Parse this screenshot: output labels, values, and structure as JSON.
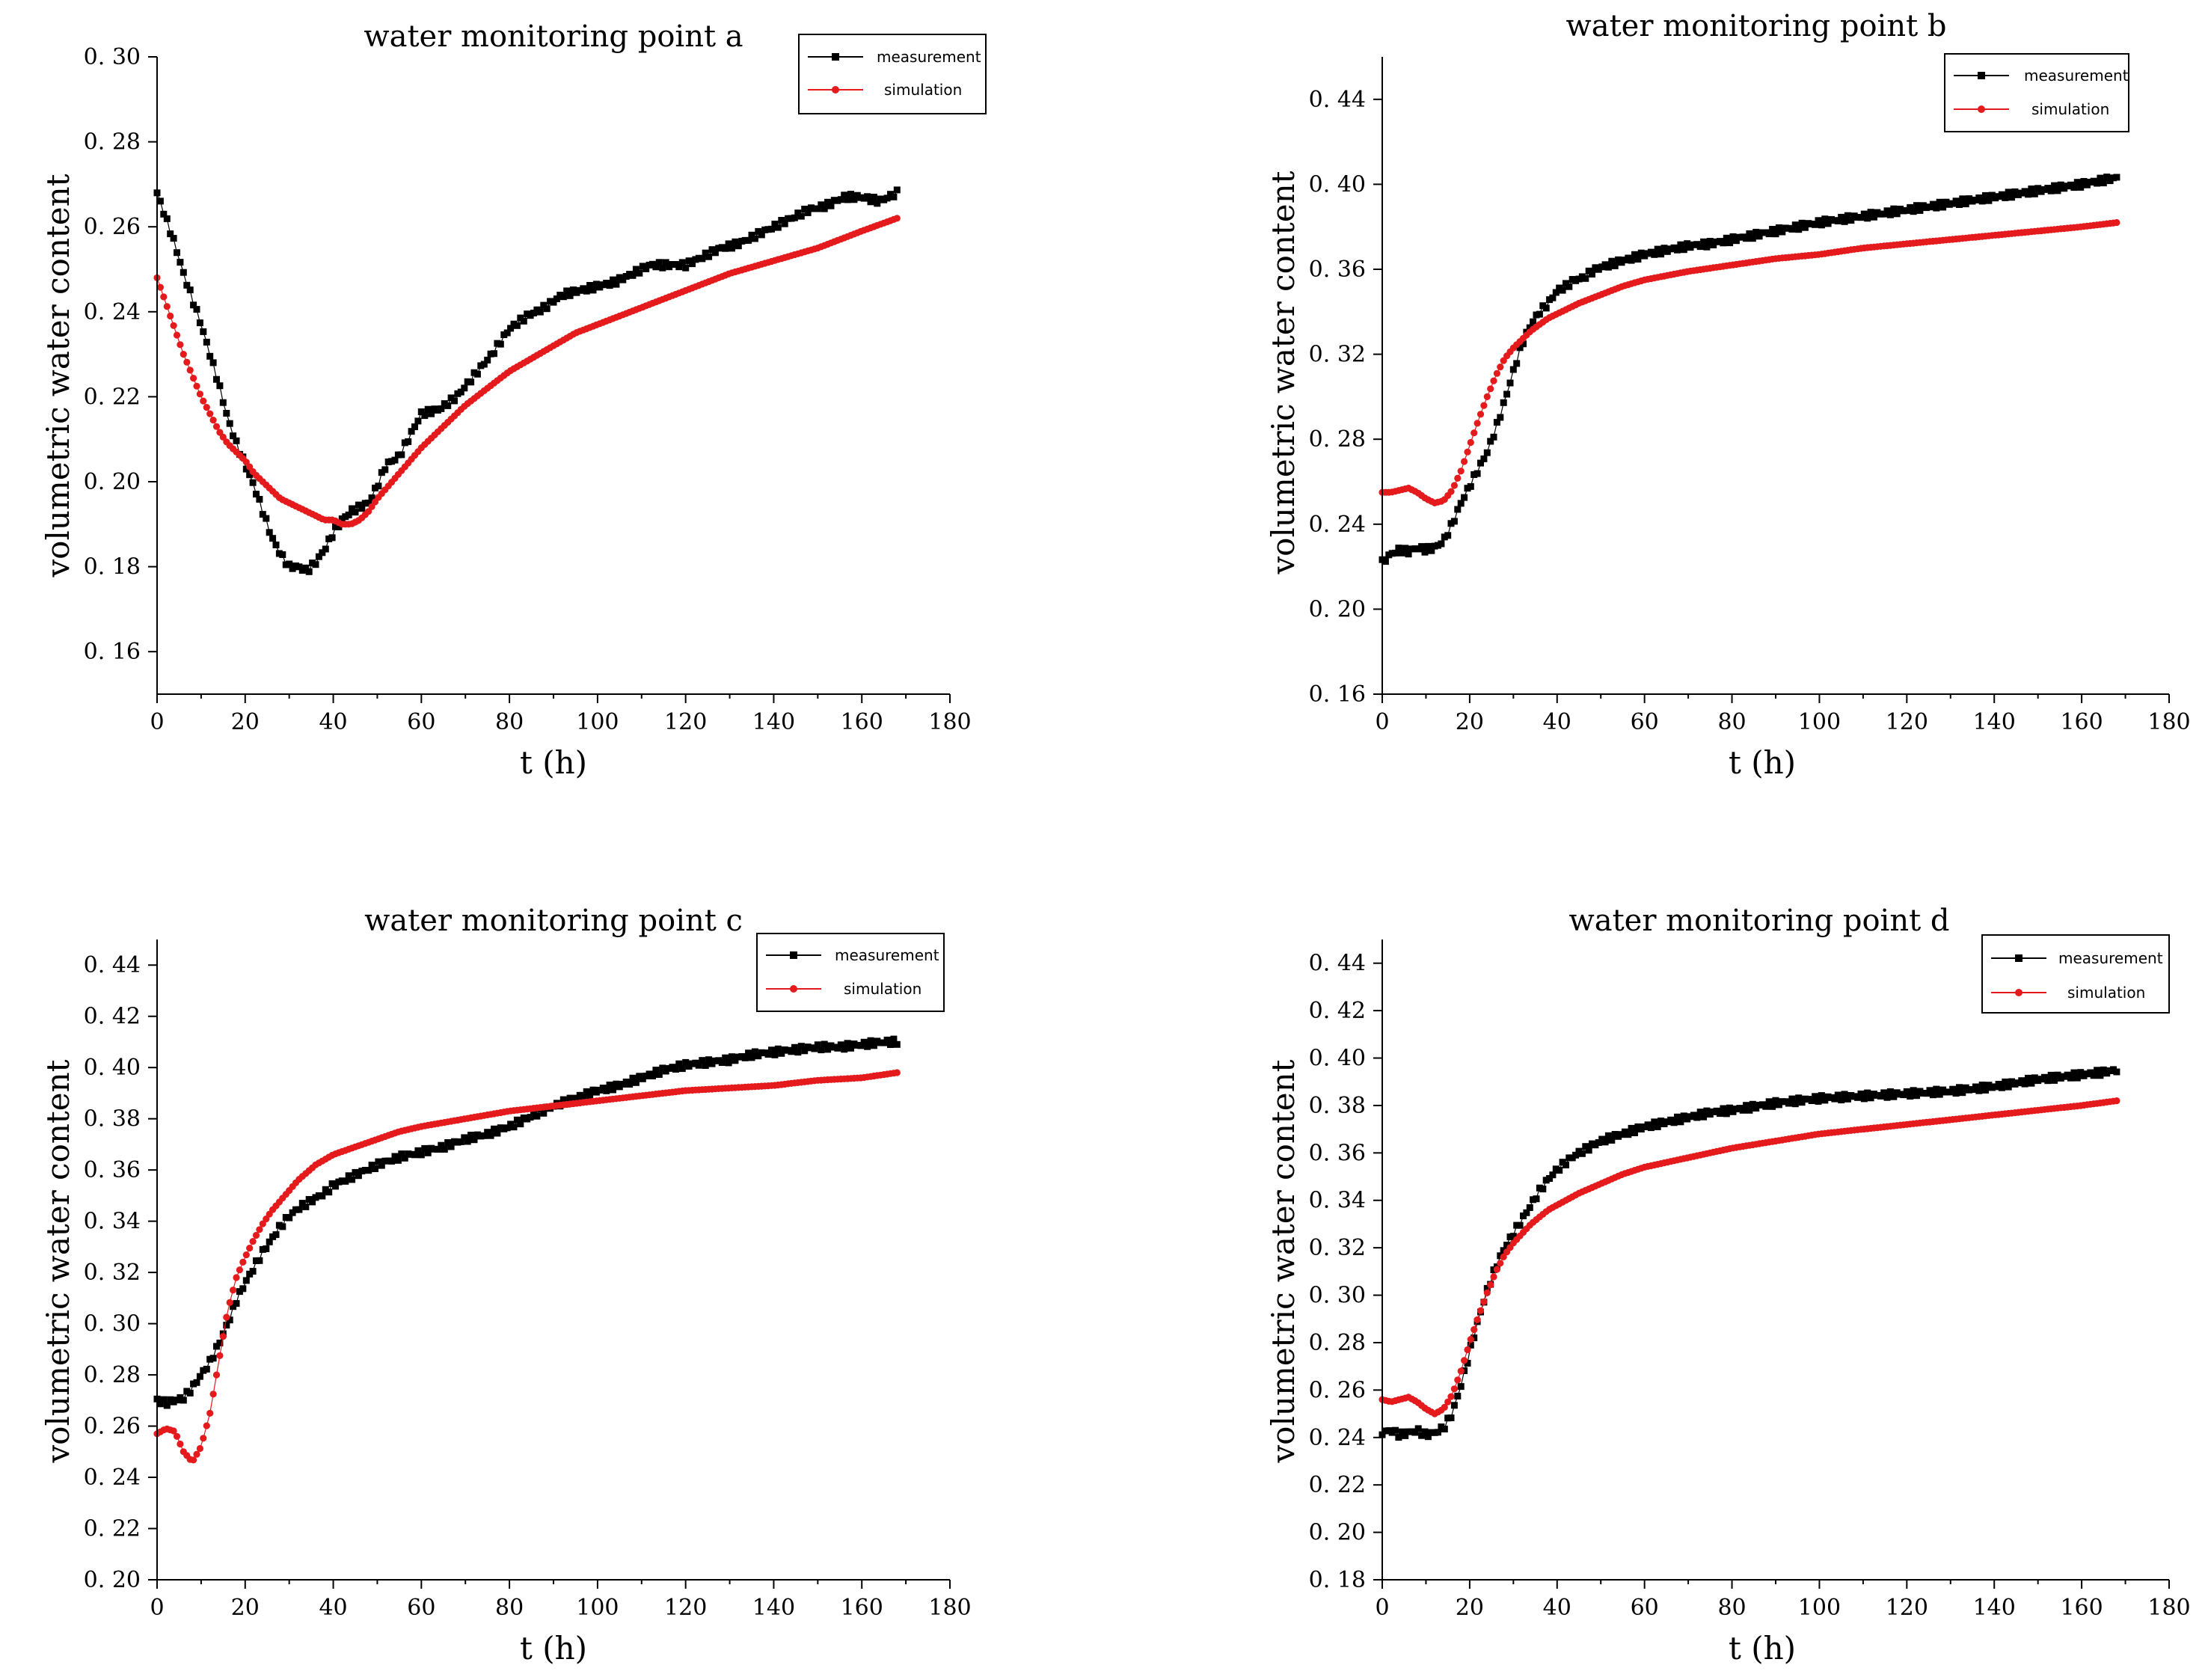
{
  "figure": {
    "series_names": [
      "measurement",
      "simulation"
    ],
    "colors": {
      "measurement": "#000000",
      "simulation": "#e41a1c"
    },
    "xlabel": "t (h)",
    "ylabel": "volumetric water content"
  },
  "chart_data": [
    {
      "type": "line",
      "title": "water monitoring point a",
      "xlabel": "t (h)",
      "ylabel": "volumetric water content",
      "xlim": [
        0,
        180
      ],
      "ylim": [
        0.15,
        0.3
      ],
      "xticks": [
        0,
        20,
        40,
        60,
        80,
        100,
        120,
        140,
        160,
        180
      ],
      "xtick_labels": [
        "0",
        "20",
        "40",
        "60",
        "80",
        "100",
        "120",
        "140",
        "160",
        "180"
      ],
      "yticks": [
        0.16,
        0.18,
        0.2,
        0.22,
        0.24,
        0.26,
        0.28,
        0.3
      ],
      "ytick_labels": [
        "0. 16",
        "0. 18",
        "0. 20",
        "0. 22",
        "0. 24",
        "0. 26",
        "0. 28",
        "0. 30"
      ],
      "legend_position": "top-right",
      "series": [
        {
          "name": "measurement",
          "x": [
            0,
            2,
            4,
            6,
            8,
            10,
            12,
            14,
            16,
            18,
            20,
            22,
            24,
            26,
            28,
            30,
            32,
            34,
            36,
            38,
            40,
            42,
            44,
            46,
            48,
            50,
            52,
            55,
            58,
            60,
            64,
            68,
            72,
            76,
            80,
            84,
            88,
            92,
            96,
            100,
            104,
            108,
            112,
            116,
            120,
            124,
            128,
            132,
            136,
            140,
            144,
            148,
            152,
            156,
            160,
            164,
            168
          ],
          "y": [
            0.268,
            0.262,
            0.256,
            0.249,
            0.243,
            0.237,
            0.23,
            0.223,
            0.215,
            0.209,
            0.204,
            0.199,
            0.193,
            0.187,
            0.183,
            0.18,
            0.18,
            0.179,
            0.181,
            0.184,
            0.188,
            0.191,
            0.193,
            0.194,
            0.195,
            0.199,
            0.204,
            0.206,
            0.212,
            0.216,
            0.217,
            0.22,
            0.225,
            0.23,
            0.236,
            0.239,
            0.241,
            0.244,
            0.245,
            0.246,
            0.247,
            0.249,
            0.251,
            0.251,
            0.251,
            0.253,
            0.255,
            0.256,
            0.258,
            0.26,
            0.262,
            0.264,
            0.265,
            0.267,
            0.267,
            0.266,
            0.268
          ]
        },
        {
          "name": "simulation",
          "x": [
            0,
            2,
            4,
            6,
            8,
            10,
            12,
            14,
            16,
            18,
            20,
            22,
            24,
            26,
            28,
            30,
            32,
            34,
            36,
            38,
            40,
            42,
            44,
            46,
            48,
            50,
            55,
            60,
            65,
            70,
            75,
            80,
            85,
            90,
            95,
            100,
            110,
            120,
            130,
            140,
            150,
            160,
            168
          ],
          "y": [
            0.248,
            0.242,
            0.236,
            0.23,
            0.225,
            0.22,
            0.216,
            0.212,
            0.209,
            0.207,
            0.205,
            0.202,
            0.2,
            0.198,
            0.196,
            0.195,
            0.194,
            0.193,
            0.192,
            0.191,
            0.191,
            0.19,
            0.19,
            0.191,
            0.193,
            0.196,
            0.202,
            0.208,
            0.213,
            0.218,
            0.222,
            0.226,
            0.229,
            0.232,
            0.235,
            0.237,
            0.241,
            0.245,
            0.249,
            0.252,
            0.255,
            0.259,
            0.262
          ]
        }
      ]
    },
    {
      "type": "line",
      "title": "water monitoring point b",
      "xlabel": "t (h)",
      "ylabel": "volumetric water content",
      "xlim": [
        0,
        180
      ],
      "ylim": [
        0.16,
        0.46
      ],
      "xticks": [
        0,
        20,
        40,
        60,
        80,
        100,
        120,
        140,
        160,
        180
      ],
      "xtick_labels": [
        "0",
        "20",
        "40",
        "60",
        "80",
        "100",
        "120",
        "140",
        "160",
        "180"
      ],
      "yticks": [
        0.16,
        0.2,
        0.24,
        0.28,
        0.32,
        0.36,
        0.4,
        0.44
      ],
      "ytick_labels": [
        "0. 16",
        "0. 20",
        "0. 24",
        "0. 28",
        "0. 32",
        "0. 36",
        "0. 40",
        "0. 44"
      ],
      "legend_position": "top-right",
      "series": [
        {
          "name": "measurement",
          "x": [
            0,
            2,
            4,
            6,
            8,
            10,
            12,
            14,
            16,
            18,
            20,
            22,
            24,
            26,
            28,
            30,
            32,
            34,
            36,
            38,
            40,
            42,
            44,
            46,
            48,
            50,
            55,
            60,
            65,
            70,
            75,
            80,
            85,
            90,
            95,
            100,
            110,
            120,
            130,
            140,
            150,
            160,
            165,
            168
          ],
          "y": [
            0.222,
            0.226,
            0.228,
            0.227,
            0.229,
            0.228,
            0.229,
            0.232,
            0.24,
            0.25,
            0.258,
            0.266,
            0.274,
            0.285,
            0.298,
            0.312,
            0.325,
            0.334,
            0.34,
            0.344,
            0.35,
            0.352,
            0.355,
            0.356,
            0.359,
            0.361,
            0.364,
            0.367,
            0.369,
            0.371,
            0.372,
            0.374,
            0.376,
            0.378,
            0.38,
            0.382,
            0.385,
            0.388,
            0.391,
            0.394,
            0.397,
            0.4,
            0.402,
            0.403
          ]
        },
        {
          "name": "simulation",
          "x": [
            0,
            2,
            4,
            6,
            8,
            10,
            12,
            14,
            16,
            18,
            20,
            22,
            24,
            26,
            28,
            30,
            32,
            34,
            36,
            38,
            40,
            45,
            50,
            55,
            60,
            65,
            70,
            80,
            90,
            100,
            110,
            120,
            130,
            140,
            150,
            160,
            168
          ],
          "y": [
            0.255,
            0.255,
            0.256,
            0.257,
            0.255,
            0.252,
            0.25,
            0.251,
            0.256,
            0.265,
            0.277,
            0.289,
            0.3,
            0.31,
            0.318,
            0.323,
            0.327,
            0.331,
            0.334,
            0.337,
            0.339,
            0.344,
            0.348,
            0.352,
            0.355,
            0.357,
            0.359,
            0.362,
            0.365,
            0.367,
            0.37,
            0.372,
            0.374,
            0.376,
            0.378,
            0.38,
            0.382
          ]
        }
      ]
    },
    {
      "type": "line",
      "title": "water monitoring point c",
      "xlabel": "t (h)",
      "ylabel": "volumetric water content",
      "xlim": [
        0,
        180
      ],
      "ylim": [
        0.2,
        0.45
      ],
      "xticks": [
        0,
        20,
        40,
        60,
        80,
        100,
        120,
        140,
        160,
        180
      ],
      "xtick_labels": [
        "0",
        "20",
        "40",
        "60",
        "80",
        "100",
        "120",
        "140",
        "160",
        "180"
      ],
      "yticks": [
        0.2,
        0.22,
        0.24,
        0.26,
        0.28,
        0.3,
        0.32,
        0.34,
        0.36,
        0.38,
        0.4,
        0.42,
        0.44
      ],
      "ytick_labels": [
        "0. 20",
        "0. 22",
        "0. 24",
        "0. 26",
        "0. 28",
        "0. 30",
        "0. 32",
        "0. 34",
        "0. 36",
        "0. 38",
        "0. 40",
        "0. 42",
        "0. 44"
      ],
      "legend_position": "top-right",
      "series": [
        {
          "name": "measurement",
          "x": [
            0,
            2,
            4,
            6,
            8,
            10,
            12,
            14,
            16,
            18,
            20,
            22,
            24,
            26,
            28,
            30,
            32,
            34,
            36,
            38,
            40,
            45,
            50,
            55,
            60,
            65,
            70,
            75,
            80,
            85,
            90,
            95,
            100,
            105,
            110,
            115,
            120,
            125,
            130,
            135,
            140,
            145,
            150,
            155,
            160,
            165,
            168
          ],
          "y": [
            0.27,
            0.269,
            0.27,
            0.271,
            0.275,
            0.28,
            0.285,
            0.292,
            0.3,
            0.309,
            0.316,
            0.322,
            0.328,
            0.333,
            0.338,
            0.342,
            0.345,
            0.347,
            0.349,
            0.351,
            0.354,
            0.358,
            0.362,
            0.365,
            0.367,
            0.369,
            0.372,
            0.374,
            0.377,
            0.381,
            0.385,
            0.388,
            0.391,
            0.393,
            0.396,
            0.399,
            0.401,
            0.402,
            0.403,
            0.405,
            0.406,
            0.407,
            0.408,
            0.408,
            0.409,
            0.41,
            0.41
          ]
        },
        {
          "name": "simulation",
          "x": [
            0,
            2,
            4,
            6,
            8,
            10,
            12,
            14,
            16,
            18,
            20,
            22,
            24,
            26,
            28,
            30,
            32,
            34,
            36,
            38,
            40,
            45,
            50,
            55,
            60,
            70,
            80,
            90,
            100,
            110,
            120,
            130,
            140,
            150,
            160,
            168
          ],
          "y": [
            0.257,
            0.259,
            0.258,
            0.25,
            0.246,
            0.252,
            0.265,
            0.285,
            0.305,
            0.318,
            0.326,
            0.333,
            0.339,
            0.344,
            0.348,
            0.352,
            0.356,
            0.359,
            0.362,
            0.364,
            0.366,
            0.369,
            0.372,
            0.375,
            0.377,
            0.38,
            0.383,
            0.385,
            0.387,
            0.389,
            0.391,
            0.392,
            0.393,
            0.395,
            0.396,
            0.398
          ]
        }
      ]
    },
    {
      "type": "line",
      "title": "water monitoring point d",
      "xlabel": "t (h)",
      "ylabel": "volumetric water content",
      "xlim": [
        0,
        180
      ],
      "ylim": [
        0.18,
        0.45
      ],
      "xticks": [
        0,
        20,
        40,
        60,
        80,
        100,
        120,
        140,
        160,
        180
      ],
      "xtick_labels": [
        "0",
        "20",
        "40",
        "60",
        "80",
        "100",
        "120",
        "140",
        "160",
        "180"
      ],
      "yticks": [
        0.18,
        0.2,
        0.22,
        0.24,
        0.26,
        0.28,
        0.3,
        0.32,
        0.34,
        0.36,
        0.38,
        0.4,
        0.42,
        0.44
      ],
      "ytick_labels": [
        "0. 18",
        "0. 20",
        "0. 22",
        "0. 24",
        "0. 26",
        "0. 28",
        "0. 30",
        "0. 32",
        "0. 34",
        "0. 36",
        "0. 38",
        "0. 40",
        "0. 42",
        "0. 44"
      ],
      "legend_position": "top-right",
      "series": [
        {
          "name": "measurement",
          "x": [
            0,
            2,
            4,
            6,
            8,
            10,
            12,
            14,
            16,
            18,
            20,
            22,
            24,
            26,
            28,
            30,
            32,
            34,
            36,
            38,
            40,
            42,
            44,
            46,
            48,
            50,
            55,
            60,
            65,
            70,
            75,
            80,
            90,
            100,
            110,
            120,
            130,
            140,
            150,
            160,
            165,
            168
          ],
          "y": [
            0.242,
            0.243,
            0.241,
            0.242,
            0.243,
            0.241,
            0.242,
            0.244,
            0.25,
            0.262,
            0.276,
            0.29,
            0.302,
            0.312,
            0.32,
            0.326,
            0.332,
            0.338,
            0.344,
            0.349,
            0.353,
            0.356,
            0.359,
            0.361,
            0.363,
            0.365,
            0.368,
            0.371,
            0.373,
            0.375,
            0.377,
            0.378,
            0.381,
            0.383,
            0.384,
            0.385,
            0.386,
            0.388,
            0.391,
            0.393,
            0.394,
            0.395
          ]
        },
        {
          "name": "simulation",
          "x": [
            0,
            2,
            4,
            6,
            8,
            10,
            12,
            14,
            16,
            18,
            20,
            22,
            24,
            26,
            28,
            30,
            32,
            34,
            36,
            38,
            40,
            45,
            50,
            55,
            60,
            70,
            80,
            90,
            100,
            110,
            120,
            130,
            140,
            150,
            160,
            168
          ],
          "y": [
            0.256,
            0.255,
            0.256,
            0.257,
            0.255,
            0.252,
            0.25,
            0.252,
            0.258,
            0.268,
            0.28,
            0.291,
            0.301,
            0.31,
            0.317,
            0.322,
            0.326,
            0.33,
            0.333,
            0.336,
            0.338,
            0.343,
            0.347,
            0.351,
            0.354,
            0.358,
            0.362,
            0.365,
            0.368,
            0.37,
            0.372,
            0.374,
            0.376,
            0.378,
            0.38,
            0.382
          ]
        }
      ]
    }
  ]
}
